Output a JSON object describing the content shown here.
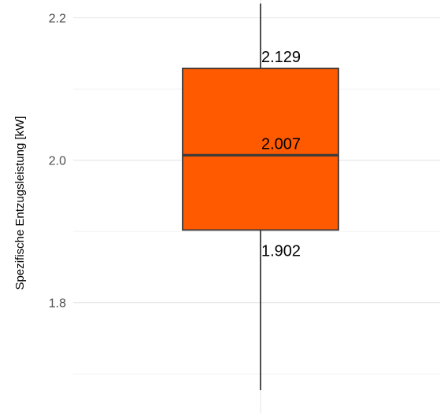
{
  "chart_data": {
    "type": "boxplot",
    "title": "",
    "xlabel": "",
    "ylabel": "Spezifische Entzugsleistung [kW]",
    "ylim": [
      1.645,
      2.225
    ],
    "yticks": [
      1.8,
      2.0,
      2.2
    ],
    "ytick_labels": [
      "1.8",
      "2.0",
      "2.2"
    ],
    "grid": true,
    "legend": "none",
    "box": {
      "whisker_low": 1.677,
      "q1": 1.902,
      "median": 2.007,
      "q3": 2.129,
      "whisker_high": 2.22,
      "fill": "#ff5a00",
      "outline": "#3a3a3a"
    },
    "annotations": [
      {
        "label": "2.129",
        "value": 2.129
      },
      {
        "label": "2.007",
        "value": 2.007
      },
      {
        "label": "1.902",
        "value": 1.902
      }
    ]
  }
}
